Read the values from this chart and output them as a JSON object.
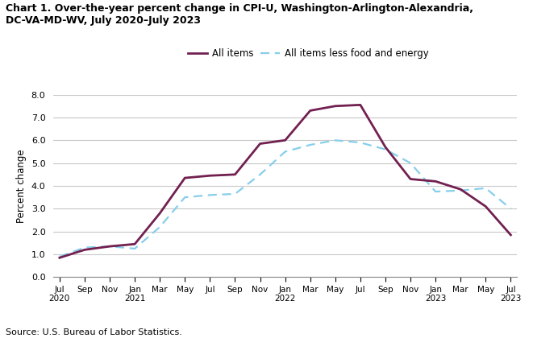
{
  "title_line1": "Chart 1. Over-the-year percent change in CPI-U, Washington-Arlington-Alexandria,",
  "title_line2": "DC-VA-MD-WV, July 2020–July 2023",
  "ylabel": "Percent change",
  "source": "Source: U.S. Bureau of Labor Statistics.",
  "ylim": [
    0.0,
    8.0
  ],
  "yticks": [
    0.0,
    1.0,
    2.0,
    3.0,
    4.0,
    5.0,
    6.0,
    7.0,
    8.0
  ],
  "all_items_color": "#722050",
  "all_items_less_color": "#87CEEB",
  "background_color": "#ffffff",
  "grid_color": "#c8c8c8",
  "all_items_label": "All items",
  "all_items_less_label": "All items less food and energy",
  "all_items_linewidth": 2.0,
  "all_items_less_linewidth": 1.6,
  "tick_labels": [
    "Jul\n2020",
    "Sep",
    "Nov",
    "Jan\n2021",
    "Mar",
    "May",
    "Jul",
    "Sep",
    "Nov",
    "Jan\n2022",
    "Mar",
    "May",
    "Jul",
    "Sep",
    "Nov",
    "Jan\n2023",
    "Mar",
    "May",
    "Jul\n2023"
  ],
  "all_items_bimonthly": [
    0.85,
    1.2,
    1.35,
    1.45,
    2.8,
    4.35,
    4.45,
    4.5,
    5.85,
    6.0,
    7.3,
    7.5,
    7.55,
    5.7,
    4.3,
    4.2,
    3.85,
    3.1,
    1.85
  ],
  "all_less_bimonthly": [
    0.9,
    1.3,
    1.35,
    1.25,
    2.2,
    3.5,
    3.6,
    3.65,
    4.5,
    5.5,
    5.8,
    6.0,
    5.9,
    5.6,
    5.0,
    3.75,
    3.8,
    3.9,
    3.0
  ]
}
